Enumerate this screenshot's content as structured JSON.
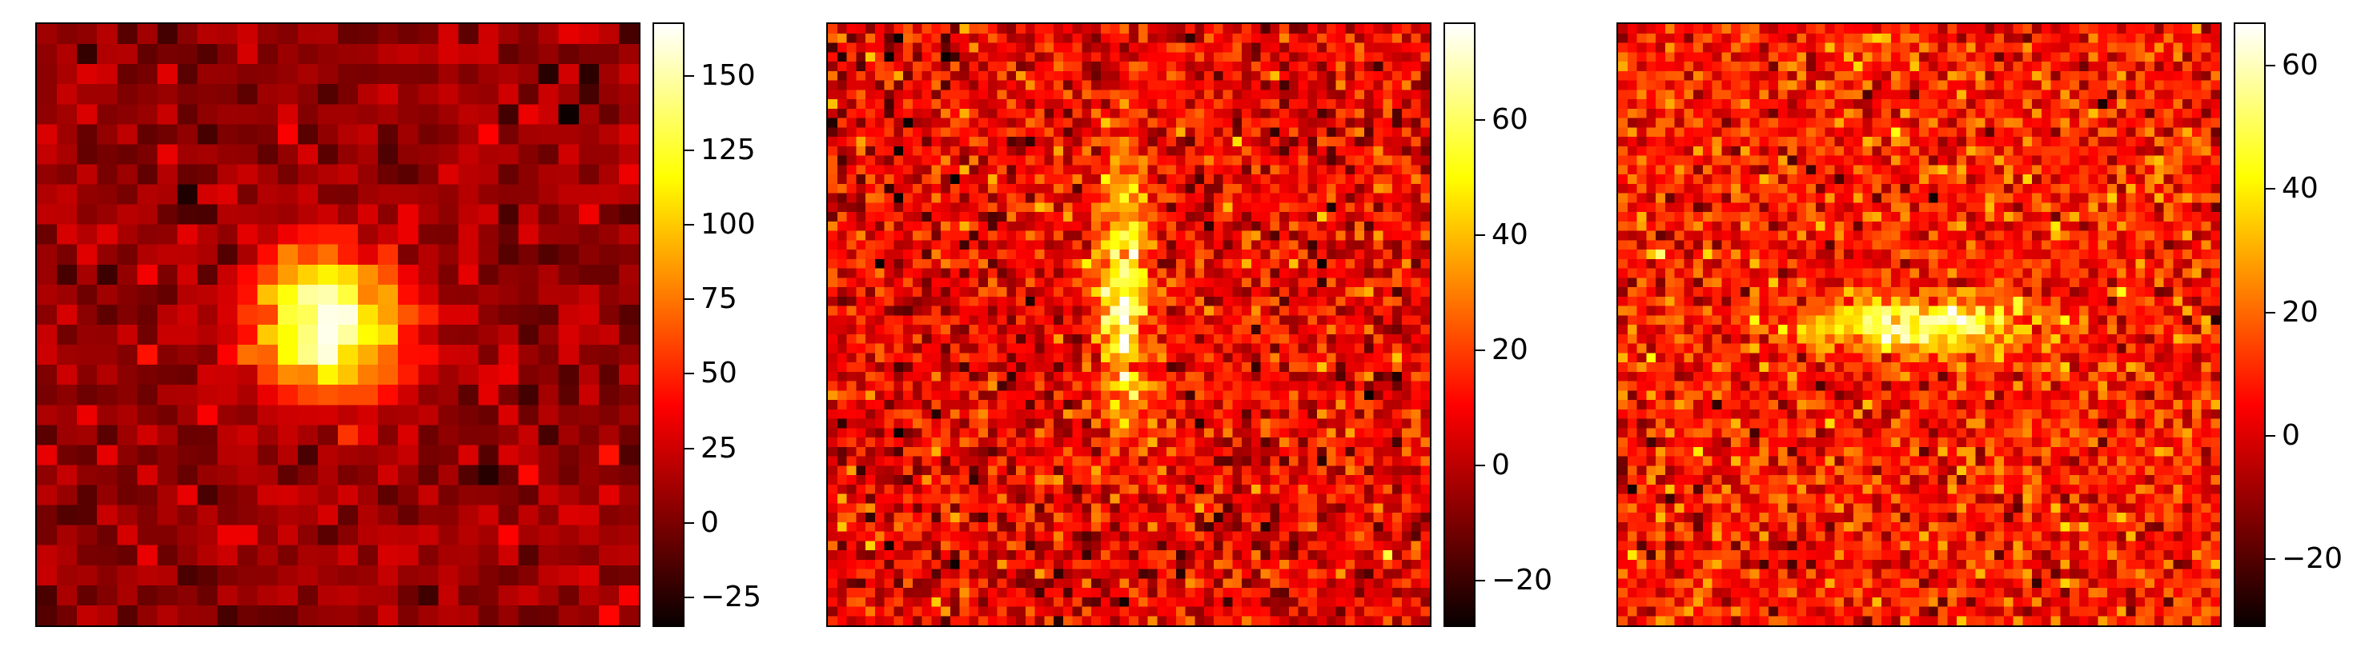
{
  "chart_data": [
    {
      "type": "heatmap",
      "colormap": "hot",
      "grid": [
        30,
        30
      ],
      "source": {
        "shape": "round blob",
        "center": [
          0.48,
          0.5
        ],
        "sigma": [
          0.085,
          0.085
        ],
        "peak": 155,
        "noise": 12
      },
      "vmin": -35,
      "vmax": 168,
      "colorbar_ticks": [
        {
          "value": 150,
          "label": "150"
        },
        {
          "value": 125,
          "label": "125"
        },
        {
          "value": 100,
          "label": "100"
        },
        {
          "value": 75,
          "label": "75"
        },
        {
          "value": 50,
          "label": "50"
        },
        {
          "value": 25,
          "label": "25"
        },
        {
          "value": 0,
          "label": "0"
        },
        {
          "value": -25,
          "label": "−25"
        }
      ]
    },
    {
      "type": "heatmap",
      "colormap": "hot",
      "grid": [
        64,
        64
      ],
      "source": {
        "shape": "vertical elongated",
        "center": [
          0.49,
          0.45
        ],
        "sigma": [
          0.03,
          0.14
        ],
        "peak": 55,
        "noise": 12
      },
      "vmin": -28,
      "vmax": 77,
      "colorbar_ticks": [
        {
          "value": 60,
          "label": "60"
        },
        {
          "value": 40,
          "label": "40"
        },
        {
          "value": 20,
          "label": "20"
        },
        {
          "value": 0,
          "label": "0"
        },
        {
          "value": -20,
          "label": "−20"
        }
      ]
    },
    {
      "type": "heatmap",
      "colormap": "hot",
      "grid": [
        64,
        64
      ],
      "source": {
        "shape": "horizontal elongated",
        "center": [
          0.5,
          0.5
        ],
        "sigma": [
          0.12,
          0.03
        ],
        "peak": 50,
        "noise": 11
      },
      "vmin": -31,
      "vmax": 67,
      "colorbar_ticks": [
        {
          "value": 60,
          "label": "60"
        },
        {
          "value": 40,
          "label": "40"
        },
        {
          "value": 20,
          "label": "20"
        },
        {
          "value": 0,
          "label": "0"
        },
        {
          "value": -20,
          "label": "−20"
        }
      ]
    }
  ]
}
